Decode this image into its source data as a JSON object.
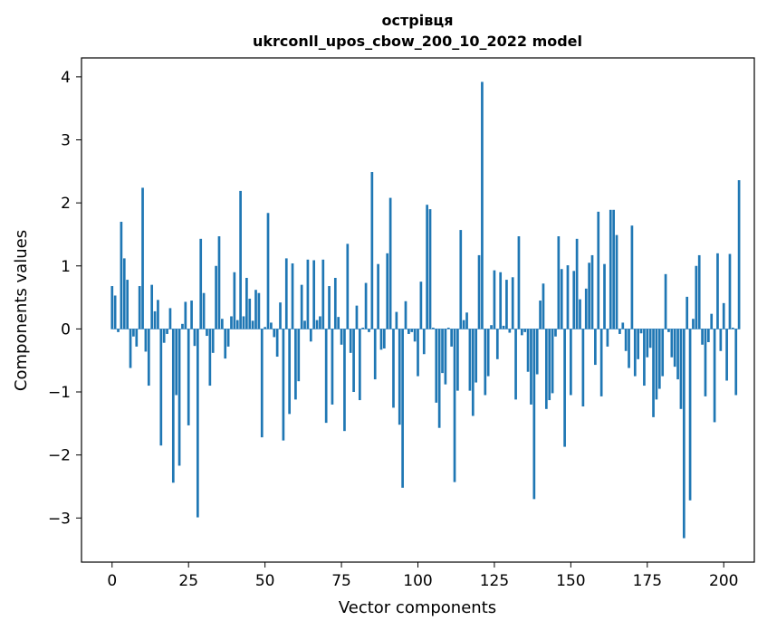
{
  "chart_data": {
    "type": "bar",
    "title": [
      "острівця",
      "ukrconll_upos_cbow_200_10_2022 model"
    ],
    "xlabel": "Vector components",
    "ylabel": "Components values",
    "xlim": [
      -10,
      210
    ],
    "ylim": [
      -3.7,
      4.3
    ],
    "xticks": [
      0,
      25,
      50,
      75,
      100,
      125,
      150,
      175,
      200
    ],
    "yticks": [
      -3,
      -2,
      -1,
      0,
      1,
      2,
      3,
      4
    ],
    "grid": false,
    "bar_color": "#1f77b4",
    "values": [
      0.68,
      0.53,
      -0.05,
      1.7,
      1.12,
      0.78,
      -0.62,
      -0.12,
      -0.28,
      0.68,
      2.24,
      -0.36,
      -0.9,
      0.7,
      0.28,
      0.46,
      -1.85,
      -0.22,
      -0.08,
      0.33,
      -2.44,
      -1.05,
      -2.17,
      0.08,
      0.43,
      -1.53,
      0.45,
      -0.27,
      -2.99,
      1.43,
      0.57,
      -0.11,
      -0.9,
      -0.38,
      1.0,
      1.47,
      0.16,
      -0.47,
      -0.28,
      0.2,
      0.9,
      0.14,
      2.19,
      0.2,
      0.81,
      0.48,
      0.13,
      0.62,
      0.57,
      -1.72,
      0.03,
      1.84,
      0.1,
      -0.13,
      -0.44,
      0.42,
      -1.77,
      1.12,
      -1.35,
      1.04,
      -1.12,
      -0.83,
      0.7,
      0.13,
      1.1,
      -0.2,
      1.09,
      0.14,
      0.2,
      1.1,
      -1.49,
      0.68,
      -1.2,
      0.81,
      0.19,
      -0.25,
      -1.62,
      1.35,
      -0.38,
      -1.0,
      0.37,
      -1.13,
      0.02,
      0.73,
      -0.05,
      2.49,
      -0.8,
      1.03,
      -0.33,
      -0.31,
      1.2,
      2.08,
      -1.25,
      0.27,
      -1.52,
      -2.52,
      0.44,
      -0.08,
      -0.05,
      -0.2,
      -0.75,
      0.75,
      -0.4,
      1.97,
      1.9,
      0.02,
      -1.17,
      -1.57,
      -0.7,
      -0.88,
      0.02,
      -0.28,
      -2.43,
      -0.98,
      1.57,
      0.14,
      0.26,
      -0.98,
      -1.38,
      -0.85,
      1.17,
      3.92,
      -1.05,
      -0.75,
      0.06,
      0.93,
      -0.48,
      0.9,
      0.05,
      0.78,
      -0.06,
      0.82,
      -1.12,
      1.47,
      -0.1,
      -0.05,
      -0.68,
      -1.2,
      -2.7,
      -0.72,
      0.45,
      0.72,
      -1.27,
      -1.13,
      -1.02,
      -0.12,
      1.47,
      0.95,
      -1.87,
      1.01,
      -1.05,
      0.92,
      1.43,
      0.47,
      -1.23,
      0.64,
      1.05,
      1.17,
      -0.57,
      1.86,
      -1.07,
      1.03,
      -0.28,
      1.89,
      1.89,
      1.49,
      -0.08,
      0.1,
      -0.35,
      -0.62,
      1.64,
      -0.75,
      -0.48,
      -0.07,
      -0.9,
      -0.45,
      -0.3,
      -1.4,
      -1.12,
      -0.95,
      -0.75,
      0.87,
      -0.05,
      -0.45,
      -0.6,
      -0.8,
      -1.27,
      -3.32,
      0.51,
      -2.72,
      0.16,
      1.0,
      1.17,
      -0.25,
      -1.07,
      -0.21,
      0.24,
      -1.48,
      1.2,
      -0.35,
      0.41,
      -0.82,
      1.19,
      0.02,
      -1.05,
      2.36
    ]
  }
}
